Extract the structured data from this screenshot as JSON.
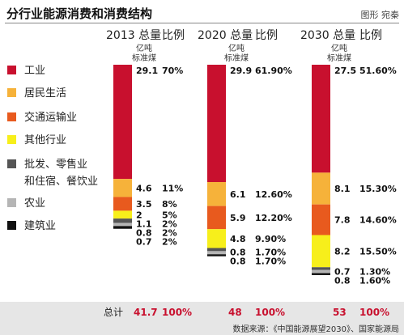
{
  "title": "分行业能源消费和消费结构",
  "credit": "图形 宛秦",
  "source": "数据来源：《中国能源展望2030》、国家能源局",
  "colors": {
    "industry": "#c8102e",
    "residential": "#f6b23a",
    "transport": "#e85a1e",
    "other": "#f7ef1b",
    "commerce": "#555555",
    "agriculture": "#b5b5b5",
    "construction": "#111111",
    "total_red": "#c8102e"
  },
  "chart_data": {
    "type": "bar",
    "stacked": true,
    "categories": [
      "2013",
      "2020",
      "2030"
    ],
    "column_headers": [
      {
        "year": "2013",
        "total_label": "总量",
        "ratio_label": "比例"
      },
      {
        "year": "2020",
        "total_label": "总量",
        "ratio_label": "比例"
      },
      {
        "year": "2030",
        "total_label": "总量",
        "ratio_label": "比例"
      }
    ],
    "unit_line1": "亿吨",
    "unit_line2": "标准煤",
    "legend": [
      {
        "key": "industry",
        "label": "工业"
      },
      {
        "key": "residential",
        "label": "居民生活"
      },
      {
        "key": "transport",
        "label": "交通运输业"
      },
      {
        "key": "other",
        "label": "其他行业"
      },
      {
        "key": "commerce",
        "label": "批发、零售业",
        "label2": "和住宿、餐饮业"
      },
      {
        "key": "agriculture",
        "label": "农业"
      },
      {
        "key": "construction",
        "label": "建筑业"
      }
    ],
    "series": [
      {
        "key": "industry",
        "values": [
          29.1,
          29.9,
          27.5
        ],
        "value_labels": [
          "29.1",
          "29.9",
          "27.5"
        ],
        "shares": [
          "70%",
          "61.90%",
          "51.60%"
        ]
      },
      {
        "key": "residential",
        "values": [
          4.6,
          6.1,
          8.1
        ],
        "value_labels": [
          "4.6",
          "6.1",
          "8.1"
        ],
        "shares": [
          "11%",
          "12.60%",
          "15.30%"
        ]
      },
      {
        "key": "transport",
        "values": [
          3.5,
          5.9,
          7.8
        ],
        "value_labels": [
          "3.5",
          "5.9",
          "7.8"
        ],
        "shares": [
          "8%",
          "12.20%",
          "14.60%"
        ]
      },
      {
        "key": "other",
        "values": [
          2,
          4.8,
          8.2
        ],
        "value_labels": [
          "2",
          "4.8",
          "8.2"
        ],
        "shares": [
          "5%",
          "9.90%",
          "15.50%"
        ]
      },
      {
        "key": "commerce",
        "values": [
          1.1,
          0.8,
          0.7
        ],
        "value_labels": [
          "1.1",
          "0.8",
          "0.7"
        ],
        "shares": [
          "2%",
          "1.70%",
          "1.30%"
        ]
      },
      {
        "key": "agriculture",
        "values": [
          0.8,
          0.8,
          0.8
        ],
        "value_labels": [
          "0.8",
          "0.8",
          "0.8"
        ],
        "shares": [
          "2%",
          "1.70%",
          "1.60%"
        ]
      },
      {
        "key": "construction",
        "values": [
          0.7,
          0.5,
          0.5
        ],
        "value_labels": [
          "0.7",
          "",
          ""
        ],
        "shares": [
          "2%",
          "",
          ""
        ]
      }
    ],
    "totals": {
      "label": "总计",
      "values": [
        "41.7",
        "48",
        "53"
      ],
      "shares": [
        "100%",
        "100%",
        "100%"
      ]
    }
  }
}
